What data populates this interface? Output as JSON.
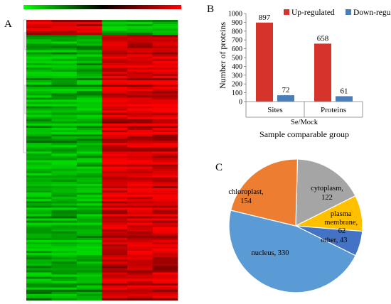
{
  "panels": {
    "a": {
      "label": "A"
    },
    "b": {
      "label": "B"
    },
    "c": {
      "label": "C"
    }
  },
  "colors": {
    "up": "#d6342b",
    "down": "#4a7ebb",
    "heat_high": "#ff0000",
    "heat_low": "#00ff00",
    "pie": [
      "#5b9bd5",
      "#ed7d31",
      "#a5a5a5",
      "#ffc000",
      "#4472c4"
    ]
  },
  "chart_data": [
    {
      "type": "heatmap",
      "title": "",
      "columns": 6,
      "color_scale": [
        "green",
        "black",
        "red"
      ],
      "note": ""
    },
    {
      "type": "bar",
      "title": "",
      "categories": [
        "Sites",
        "Proteins"
      ],
      "group_label": "Se/Mock",
      "xlabel": "Sample comparable group",
      "ylabel": "Number of proteins",
      "ylim": [
        0,
        1000
      ],
      "yticks": [
        0,
        100,
        200,
        300,
        400,
        500,
        600,
        700,
        800,
        900,
        1000
      ],
      "series": [
        {
          "name": "Up-regulated",
          "values": [
            897,
            658
          ]
        },
        {
          "name": "Down-regulated",
          "values": [
            72,
            61
          ]
        }
      ],
      "legend": "top"
    },
    {
      "type": "pie",
      "title": "",
      "slices": [
        {
          "label": "nucleus,",
          "value_label": "330",
          "value": 330
        },
        {
          "label": "chloroplast,",
          "value_label": "154",
          "value": 154
        },
        {
          "label": "cytoplasm,",
          "value_label": "122",
          "value": 122
        },
        {
          "label": "plasma membrane,",
          "value_label": "62",
          "value": 62
        },
        {
          "label": "other,",
          "value_label": "43",
          "value": 43
        }
      ]
    }
  ]
}
